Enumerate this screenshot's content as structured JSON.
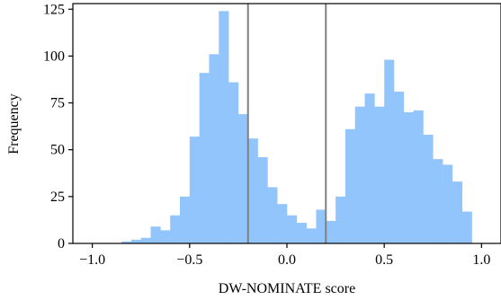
{
  "chart_data": {
    "type": "bar",
    "title": "",
    "xlabel": "DW-NOMINATE score",
    "ylabel": "Frequency",
    "xlim": [
      -1.1,
      1.1
    ],
    "ylim": [
      0,
      128
    ],
    "x_ticks": [
      -1.0,
      -0.5,
      0.0,
      0.5,
      1.0
    ],
    "x_tick_labels": [
      "−1.0",
      "−0.5",
      "0.0",
      "0.5",
      "1.0"
    ],
    "y_ticks": [
      0,
      25,
      50,
      75,
      100,
      125
    ],
    "y_tick_labels": [
      "0",
      "25",
      "50",
      "75",
      "100",
      "125"
    ],
    "bin_width": 0.05,
    "bins_left_edge": [
      -0.85,
      -0.8,
      -0.75,
      -0.7,
      -0.65,
      -0.6,
      -0.55,
      -0.5,
      -0.45,
      -0.4,
      -0.35,
      -0.3,
      -0.25,
      -0.2,
      -0.15,
      -0.1,
      -0.05,
      0.0,
      0.05,
      0.1,
      0.15,
      0.2,
      0.25,
      0.3,
      0.35,
      0.4,
      0.45,
      0.5,
      0.55,
      0.6,
      0.65,
      0.7,
      0.75,
      0.8,
      0.85,
      0.9
    ],
    "values": [
      1,
      2,
      3,
      9,
      7,
      15,
      25,
      57,
      91,
      101,
      124,
      86,
      69,
      56,
      46,
      30,
      21,
      15,
      11,
      8,
      18,
      12,
      25,
      61,
      73,
      80,
      73,
      98,
      81,
      70,
      71,
      58,
      45,
      42,
      33,
      17
    ],
    "vertical_lines": [
      -0.2,
      0.2
    ],
    "colors": {
      "bars": "#93c5fd",
      "vertical_lines": "#808080"
    },
    "grid": false,
    "legend": "none"
  }
}
